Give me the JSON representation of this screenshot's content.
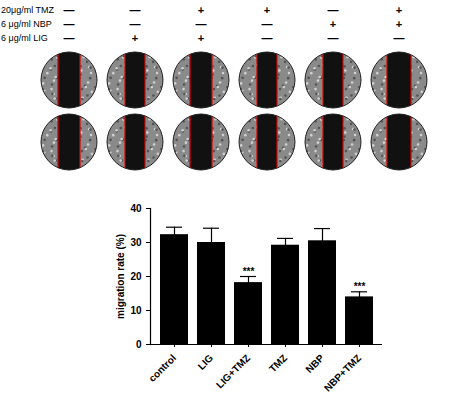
{
  "chart_data": {
    "type": "bar",
    "categories": [
      "control",
      "LIG",
      "LIG+TMZ",
      "TMZ",
      "NBP",
      "NBP+TMZ"
    ],
    "values": [
      32.3,
      30.0,
      18.2,
      29.2,
      30.5,
      14.0
    ],
    "errors": [
      2.2,
      4.2,
      1.8,
      2.0,
      3.6,
      1.5
    ],
    "significance": [
      null,
      null,
      "***",
      null,
      null,
      "***"
    ],
    "y_label": "migration rate (%)",
    "color": "#000000",
    "ylim": [
      0,
      40
    ],
    "yticks": [
      0,
      10,
      20,
      30,
      40
    ]
  },
  "treatments": {
    "rows": [
      {
        "label": "20μg/ml TMZ",
        "marks": [
          "—",
          "—",
          "+",
          "+",
          "—",
          "+"
        ]
      },
      {
        "label": "6 μg/ml NBP",
        "marks": [
          "—",
          "—",
          "—",
          "—",
          "+",
          "+"
        ]
      },
      {
        "label": "6 μg/ml LIG",
        "marks": [
          "—",
          "+",
          "+",
          "—",
          "—",
          "—"
        ]
      }
    ]
  }
}
